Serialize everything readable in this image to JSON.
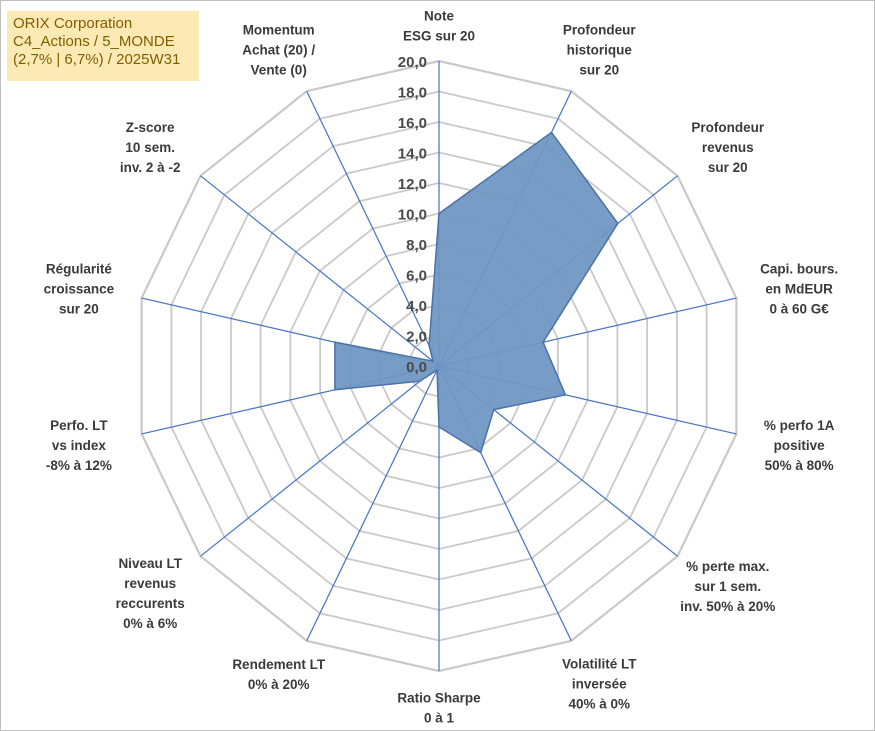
{
  "chart_data": {
    "type": "radar",
    "title_lines": [
      "ORIX Corporation",
      "C4_Actions / 5_MONDE",
      "(2,7% | 6,7%) / 2025W31"
    ],
    "rmin": 0,
    "rmax": 20,
    "tick_step": 2,
    "tick_labels": [
      "0,0",
      "2,0",
      "4,0",
      "6,0",
      "8,0",
      "10,0",
      "12,0",
      "14,0",
      "16,0",
      "18,0",
      "20,0"
    ],
    "grid": true,
    "colors": {
      "fill": "#7097c2",
      "edge": "#4a72a8",
      "grid": "#c9c9c9",
      "spoke": "#4472c4"
    },
    "axes": [
      {
        "label": [
          "Note",
          "ESG sur 20"
        ],
        "value": 10.0
      },
      {
        "label": [
          "Profondeur",
          "historique",
          "sur 20"
        ],
        "value": 17.0
      },
      {
        "label": [
          "Profondeur",
          "revenus",
          "sur 20"
        ],
        "value": 15.0
      },
      {
        "label": [
          "Capi. bours.",
          "en MdEUR",
          "0 à 60 G€"
        ],
        "value": 7.0
      },
      {
        "label": [
          "% perfo 1A",
          "positive",
          "50% à 80%"
        ],
        "value": 8.5
      },
      {
        "label": [
          "% perte max.",
          "sur 1 sem.",
          "inv. 50% à 20%"
        ],
        "value": 4.6
      },
      {
        "label": [
          "Volatilité LT",
          "inversée",
          "40% à 0%"
        ],
        "value": 6.3
      },
      {
        "label": [
          "Ratio Sharpe",
          "0 à 1"
        ],
        "value": 4.0
      },
      {
        "label": [
          "Rendement LT",
          "0% à 20%"
        ],
        "value": 0.3
      },
      {
        "label": [
          "Niveau LT",
          "revenus",
          "reccurents",
          "0% à 6%"
        ],
        "value": 1.6
      },
      {
        "label": [
          "Perfo. LT",
          "vs index",
          "-8% à 12%"
        ],
        "value": 7.0
      },
      {
        "label": [
          "Régularité",
          "croissance",
          "sur 20"
        ],
        "value": 7.0
      },
      {
        "label": [
          "Z-score",
          "10 sem.",
          "inv. 2 à -2"
        ],
        "value": 0.5
      },
      {
        "label": [
          "Momentum",
          "Achat (20) /",
          "Vente (0)"
        ],
        "value": 1.5
      }
    ]
  }
}
